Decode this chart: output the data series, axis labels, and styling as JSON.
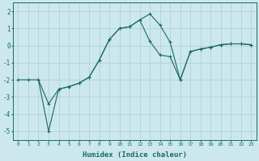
{
  "line_curve_x": [
    2,
    3,
    4,
    5,
    6,
    7,
    8,
    9,
    10,
    11,
    12,
    13,
    14,
    15,
    16,
    17,
    18,
    19,
    20,
    21,
    22,
    23
  ],
  "line_curve_y": [
    -2.0,
    -3.4,
    -2.55,
    -2.4,
    -2.2,
    -1.85,
    -0.85,
    0.35,
    1.0,
    1.1,
    1.5,
    1.85,
    1.2,
    0.2,
    -2.0,
    -0.35,
    -0.2,
    -0.1,
    0.05,
    0.1,
    0.1,
    0.05
  ],
  "line_diag_x": [
    0,
    1,
    2,
    3,
    4,
    5,
    6,
    7,
    8,
    9,
    10,
    11,
    12,
    13,
    14,
    15,
    16,
    17,
    18,
    19,
    20,
    21,
    22,
    23
  ],
  "line_diag_y": [
    -2.0,
    -2.0,
    -2.0,
    -5.0,
    -2.55,
    -2.4,
    -2.2,
    -1.85,
    -0.85,
    0.35,
    1.0,
    1.1,
    1.5,
    0.25,
    -0.55,
    -0.65,
    -2.0,
    -0.35,
    -0.2,
    -0.1,
    0.05,
    0.1,
    0.1,
    0.05
  ],
  "color": "#1a6b5a",
  "bg_color": "#cce8ec",
  "grid_color": "#aacdd4",
  "xlabel": "Humidex (Indice chaleur)",
  "ylim": [
    -5.5,
    2.5
  ],
  "xlim": [
    -0.5,
    23.5
  ],
  "yticks": [
    2,
    1,
    0,
    -1,
    -2,
    -3,
    -4,
    -5
  ],
  "xticks": [
    0,
    1,
    2,
    3,
    4,
    5,
    6,
    7,
    8,
    9,
    10,
    11,
    12,
    13,
    14,
    15,
    16,
    17,
    18,
    19,
    20,
    21,
    22,
    23
  ]
}
